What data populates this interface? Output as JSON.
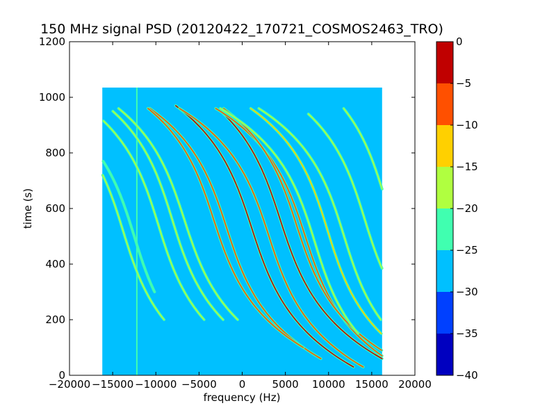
{
  "chart_data": {
    "type": "heatmap",
    "title": "150 MHz signal PSD (20120422_170721_COSMOS2463_TRO)",
    "xlabel": "frequency (Hz)",
    "ylabel": "time (s)",
    "xlim": [
      -20000,
      20000
    ],
    "ylim": [
      0,
      1200
    ],
    "xticks": [
      -20000,
      -15000,
      -10000,
      -5000,
      0,
      5000,
      10000,
      15000,
      20000
    ],
    "xtick_labels": [
      "−20000",
      "−15000",
      "−10000",
      "−5000",
      "0",
      "5000",
      "10000",
      "15000",
      "20000"
    ],
    "yticks": [
      0,
      200,
      400,
      600,
      800,
      1000,
      1200
    ],
    "ytick_labels": [
      "0",
      "200",
      "400",
      "600",
      "800",
      "1000",
      "1200"
    ],
    "data_extent": {
      "x": [
        -16200,
        16200
      ],
      "y": [
        0,
        1035
      ]
    },
    "background_level": -27,
    "fixed_line": {
      "x": -12200,
      "level": -22
    },
    "traces": [
      {
        "x0": 1100,
        "a": 2200,
        "k": 210,
        "t0": 530,
        "tmin": 30,
        "tmax": 970,
        "level": -3
      },
      {
        "x0": 4400,
        "a": 2200,
        "k": 210,
        "t0": 560,
        "tmin": 20,
        "tmax": 950,
        "level": -2
      },
      {
        "x0": 7300,
        "a": 2100,
        "k": 200,
        "t0": 500,
        "tmin": 60,
        "tmax": 960,
        "level": -5
      },
      {
        "x0": 6300,
        "a": 2100,
        "k": 200,
        "t0": 540,
        "tmin": 40,
        "tmax": 960,
        "level": -6
      },
      {
        "x0": -1800,
        "a": 2100,
        "k": 200,
        "t0": 530,
        "tmin": 60,
        "tmax": 960,
        "level": -6
      },
      {
        "x0": -3300,
        "a": 2100,
        "k": 200,
        "t0": 560,
        "tmin": 100,
        "tmax": 960,
        "level": -6
      },
      {
        "x0": 3100,
        "a": 2100,
        "k": 200,
        "t0": 500,
        "tmin": 30,
        "tmax": 960,
        "level": -8
      },
      {
        "x0": 9900,
        "a": 2000,
        "k": 200,
        "t0": 520,
        "tmin": 150,
        "tmax": 960,
        "level": -12
      },
      {
        "x0": 8400,
        "a": 2000,
        "k": 200,
        "t0": 480,
        "tmin": 150,
        "tmax": 960,
        "level": -15
      },
      {
        "x0": 11800,
        "a": 2000,
        "k": 200,
        "t0": 500,
        "tmin": 200,
        "tmax": 960,
        "level": -18
      },
      {
        "x0": 14200,
        "a": 2000,
        "k": 200,
        "t0": 560,
        "tmin": 150,
        "tmax": 940,
        "level": -18
      },
      {
        "x0": -6700,
        "a": 2100,
        "k": 200,
        "t0": 560,
        "tmin": 200,
        "tmax": 960,
        "level": -16
      },
      {
        "x0": -8100,
        "a": 2000,
        "k": 200,
        "t0": 560,
        "tmin": 200,
        "tmax": 950,
        "level": -18
      },
      {
        "x0": -9700,
        "a": 2000,
        "k": 200,
        "t0": 540,
        "tmin": 200,
        "tmax": 930,
        "level": -18
      },
      {
        "x0": -13800,
        "a": 2000,
        "k": 200,
        "t0": 520,
        "tmin": 200,
        "tmax": 920,
        "level": -16
      },
      {
        "x0": -12500,
        "a": 2000,
        "k": 200,
        "t0": 500,
        "tmin": 300,
        "tmax": 900,
        "level": -20
      },
      {
        "x0": 16500,
        "a": 2000,
        "k": 200,
        "t0": 640,
        "tmin": 550,
        "tmax": 960,
        "level": -18
      }
    ],
    "colorbar": {
      "range": [
        -40,
        0
      ],
      "ticks": [
        0,
        -5,
        -10,
        -15,
        -20,
        -25,
        -30,
        -35,
        -40
      ],
      "tick_labels": [
        "0",
        "−5",
        "−10",
        "−15",
        "−20",
        "−25",
        "−30",
        "−35",
        "−40"
      ],
      "bands": [
        {
          "from": -40,
          "to": -35,
          "color": "#0000c0"
        },
        {
          "from": -35,
          "to": -30,
          "color": "#0040ff"
        },
        {
          "from": -30,
          "to": -25,
          "color": "#00c0ff"
        },
        {
          "from": -25,
          "to": -20,
          "color": "#40ffb0"
        },
        {
          "from": -20,
          "to": -15,
          "color": "#b0ff40"
        },
        {
          "from": -15,
          "to": -10,
          "color": "#ffd000"
        },
        {
          "from": -10,
          "to": -5,
          "color": "#ff5000"
        },
        {
          "from": -5,
          "to": 0,
          "color": "#c00000"
        }
      ]
    }
  }
}
